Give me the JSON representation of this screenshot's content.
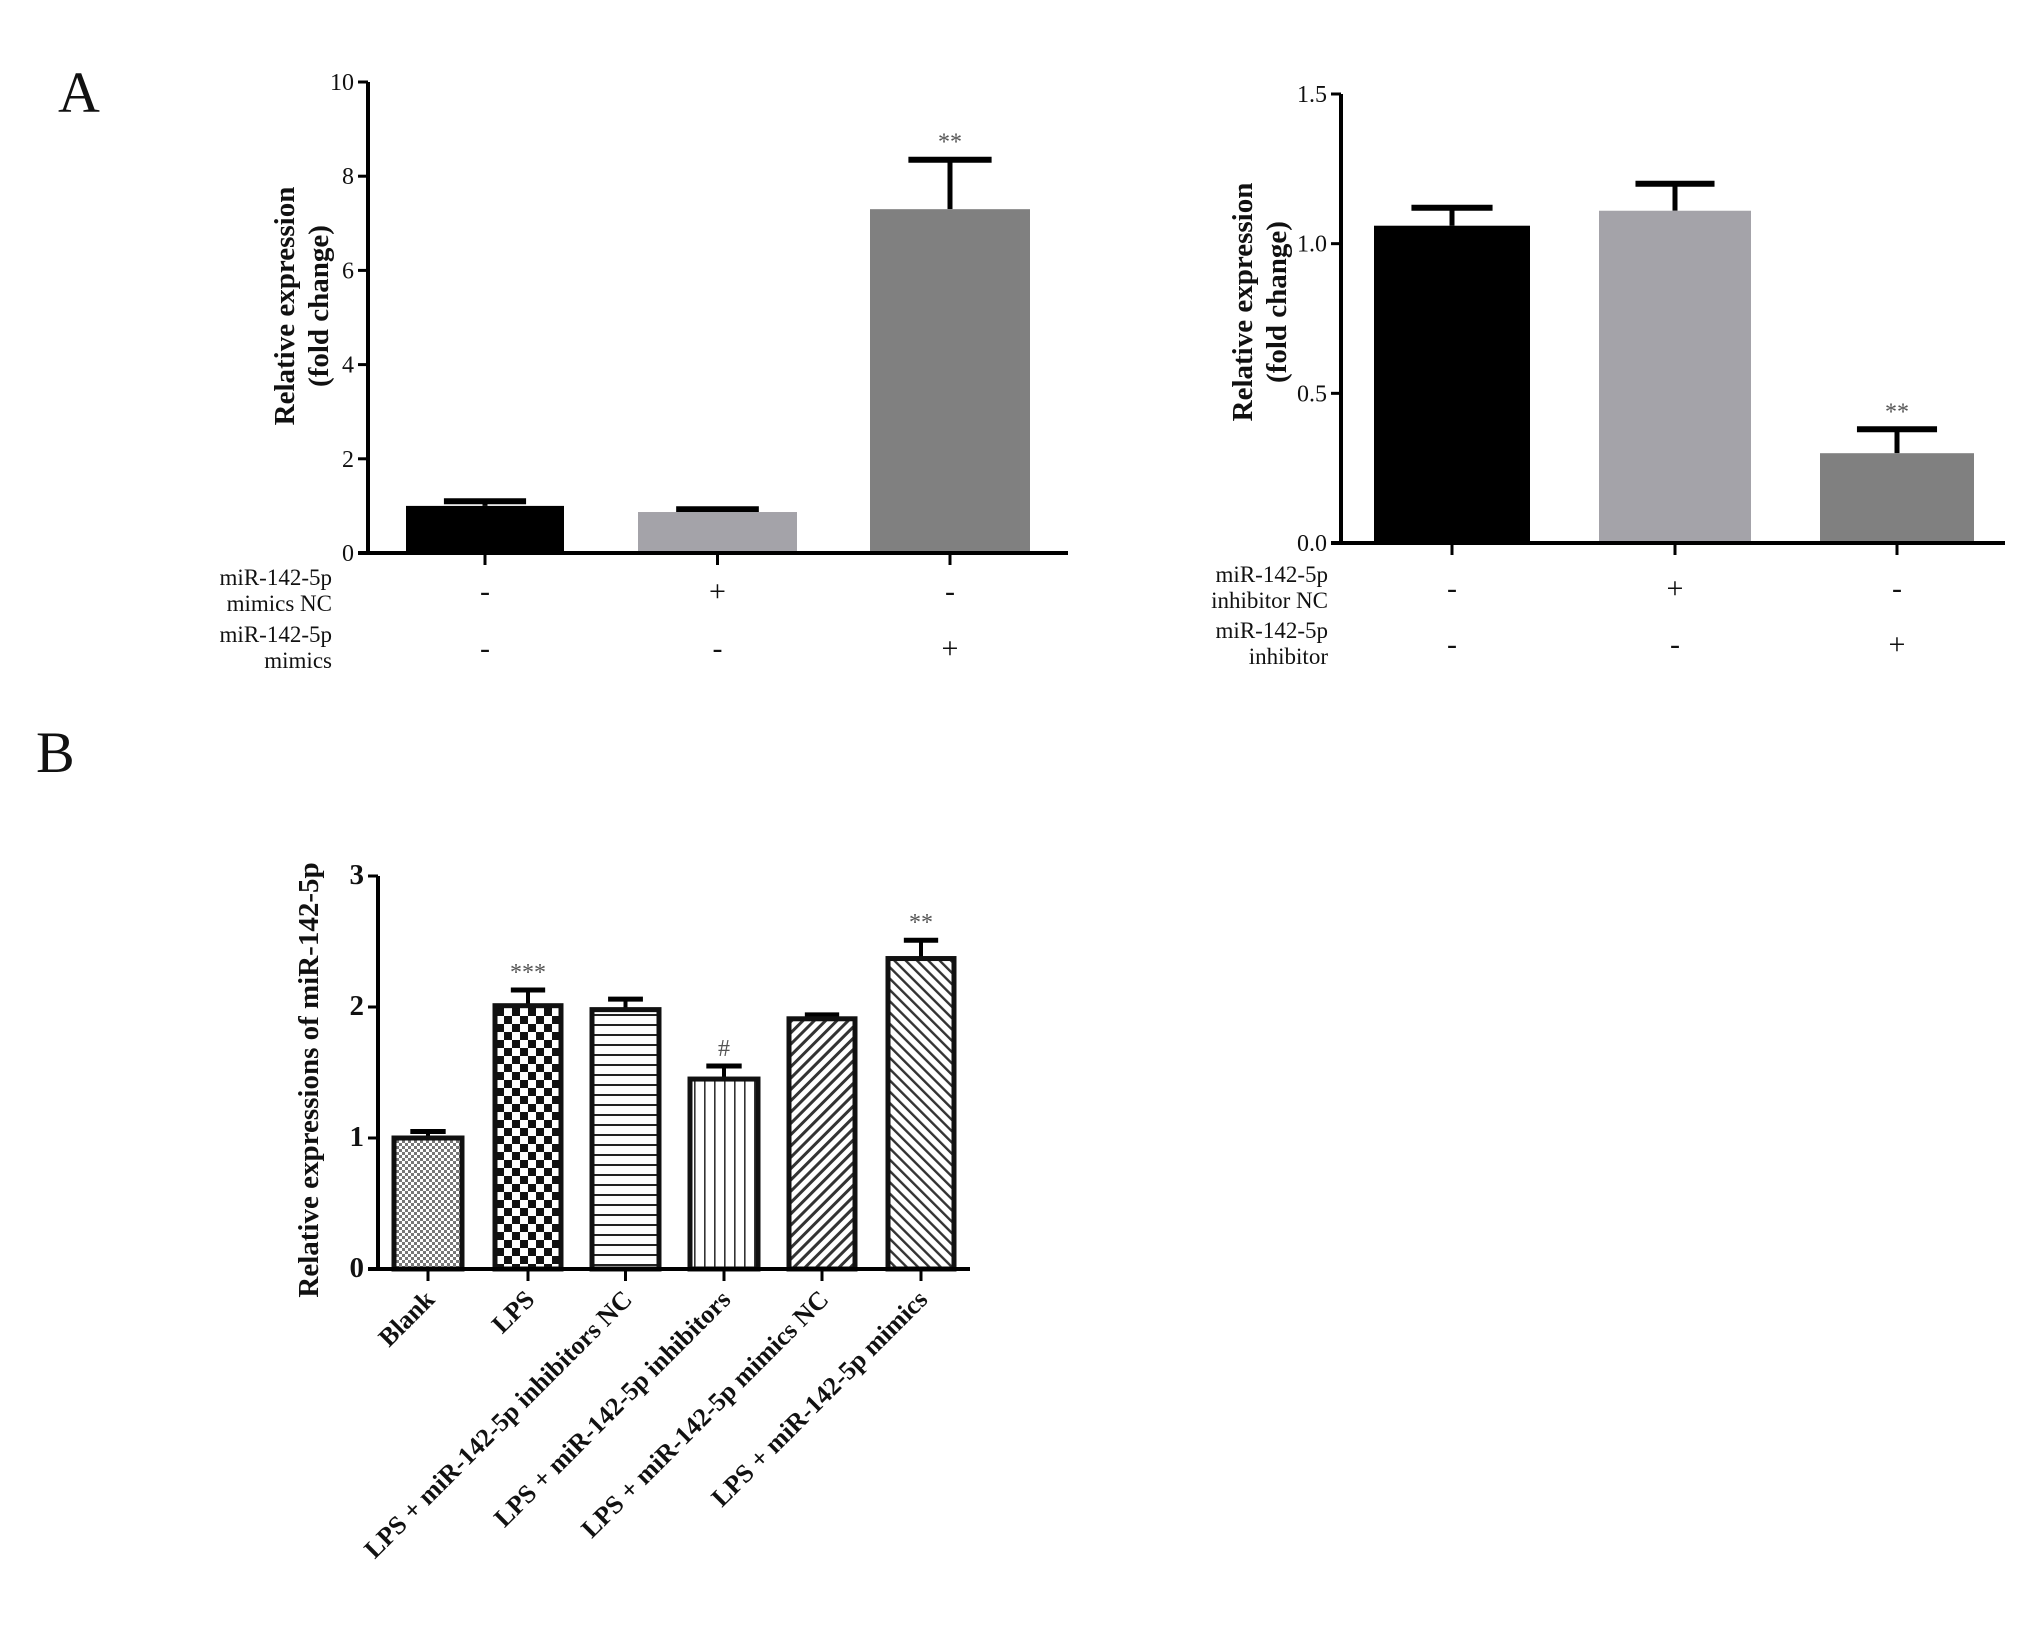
{
  "panels": [
    "A",
    "B"
  ],
  "chart_data": [
    {
      "type": "bar",
      "panel": "A",
      "ylabel": [
        "Relative expression",
        "(fold change)"
      ],
      "ylim": [
        0,
        10
      ],
      "yticks": [
        0,
        2,
        4,
        6,
        8,
        10
      ],
      "ytick_labels": [
        "0",
        "2",
        "4",
        "6",
        "8",
        "10"
      ],
      "condition_rows": [
        {
          "label": [
            "miR-142-5p",
            "mimics NC"
          ],
          "signs": [
            "-",
            "+",
            "-"
          ]
        },
        {
          "label": [
            "miR-142-5p",
            "mimics"
          ],
          "signs": [
            "-",
            "-",
            "+"
          ]
        }
      ],
      "values": [
        1.0,
        0.87,
        7.3
      ],
      "errors": [
        0.1,
        0.06,
        1.05
      ],
      "colors": [
        "#000000",
        "#a4a3a9",
        "#808080"
      ],
      "significance": [
        "",
        "",
        "**"
      ]
    },
    {
      "type": "bar",
      "panel": "A",
      "ylabel": [
        "Relative expression",
        "(fold change)"
      ],
      "ylim": [
        0,
        1.5
      ],
      "yticks": [
        0,
        0.5,
        1.0,
        1.5
      ],
      "ytick_labels": [
        "0.0",
        "0.5",
        "1.0",
        "1.5"
      ],
      "condition_rows": [
        {
          "label": [
            "miR-142-5p",
            "inhibitor NC"
          ],
          "signs": [
            "-",
            "+",
            "-"
          ]
        },
        {
          "label": [
            "miR-142-5p",
            "inhibitor"
          ],
          "signs": [
            "-",
            "-",
            "+"
          ]
        }
      ],
      "values": [
        1.06,
        1.11,
        0.3
      ],
      "errors": [
        0.06,
        0.09,
        0.08
      ],
      "colors": [
        "#000000",
        "#a4a3a9",
        "#808080"
      ],
      "significance": [
        "",
        "",
        "**"
      ]
    },
    {
      "type": "bar",
      "panel": "B",
      "ylabel": [
        "Relative expressions of miR-142-5p"
      ],
      "ylim": [
        0,
        3
      ],
      "yticks": [
        0,
        1,
        2,
        3
      ],
      "ytick_labels": [
        "0",
        "1",
        "2",
        "3"
      ],
      "categories": [
        "Blank",
        "LPS",
        "LPS + miR-142-5p inhibitors NC",
        "LPS + miR-142-5p inhibitors",
        "LPS + miR-142-5p mimics NC",
        "LPS + miR-142-5p mimics"
      ],
      "values": [
        1.0,
        2.01,
        1.98,
        1.45,
        1.91,
        2.37
      ],
      "errors": [
        0.05,
        0.12,
        0.08,
        0.1,
        0.03,
        0.14
      ],
      "fill_patterns": [
        "fine-dots",
        "checker",
        "horizontal-lines",
        "vertical-lines",
        "diagonal-forward",
        "diagonal-back"
      ],
      "significance": [
        "",
        "***",
        "",
        "#",
        "",
        "**"
      ]
    }
  ]
}
